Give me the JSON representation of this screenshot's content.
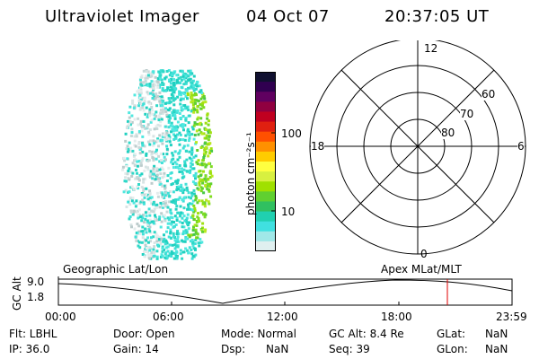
{
  "header": {
    "instrument": "Ultraviolet Imager",
    "date": "04 Oct 07",
    "time": "20:37:05 UT"
  },
  "colorbar": {
    "label": "photon cm⁻²s⁻¹",
    "ticks": [
      "100",
      "10"
    ],
    "scale": "log",
    "colors": [
      "#101030",
      "#300050",
      "#600060",
      "#900040",
      "#c00020",
      "#e02010",
      "#ff5000",
      "#ff9000",
      "#ffcc00",
      "#ffff40",
      "#d8f040",
      "#a0e000",
      "#60d030",
      "#30c060",
      "#20d0b0",
      "#40e0e0",
      "#a0e8e8",
      "#e0f0f0"
    ]
  },
  "polar_plot": {
    "mlt_labels": {
      "top": "12",
      "left": "18",
      "right": "6",
      "bottom": "0"
    },
    "lat_labels": [
      "60",
      "70",
      "80"
    ]
  },
  "timeline": {
    "label_left": "Geographic Lat/Lon",
    "label_right": "Apex MLat/MLT",
    "axis_title": "GC Alt",
    "y_ticks": [
      "9.0",
      "1.8"
    ],
    "x_ticks": [
      "00:00",
      "06:00",
      "12:00",
      "18:00",
      "23:59"
    ],
    "marker_color": "#e00000"
  },
  "info": {
    "flt": "Flt: LBHL",
    "ip": "IP: 36.0",
    "door": "Door: Open",
    "gain": "Gain: 14",
    "mode": "Mode: Normal",
    "dsp": "Dsp:",
    "dsp_val": "NaN",
    "gcalt": "GC Alt: 8.4 Re",
    "seq": "Seq: 39",
    "glat": "GLat:",
    "glat_val": "NaN",
    "glon": "GLon:",
    "glon_val": "NaN"
  }
}
